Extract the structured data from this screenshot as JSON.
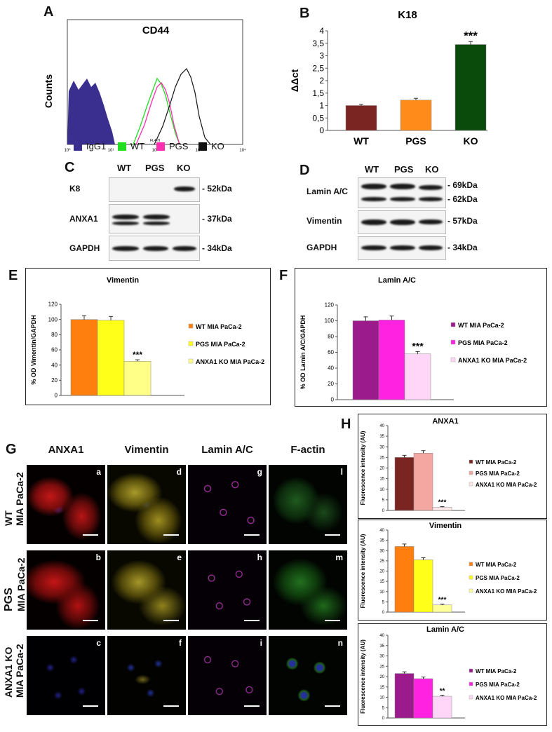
{
  "panels": {
    "A": "A",
    "B": "B",
    "C": "C",
    "D": "D",
    "E": "E",
    "F": "F",
    "G": "G",
    "H": "H"
  },
  "panel_a": {
    "title": "CD44",
    "ylabel": "Counts",
    "xlabel": "FL4-H",
    "x_ticks": [
      "10⁰",
      "10¹",
      "10²",
      "10³",
      "10⁴"
    ],
    "legend": [
      {
        "label": "IgG1",
        "color": "#3a2f8f"
      },
      {
        "label": "WT",
        "color": "#22dd22"
      },
      {
        "label": "PGS",
        "color": "#ff2fb0"
      },
      {
        "label": "KO",
        "color": "#111111"
      }
    ]
  },
  "panel_c": {
    "lanes": [
      "WT",
      "PGS",
      "KO"
    ],
    "rows": [
      {
        "label": "K8",
        "kda": "- 52kDa"
      },
      {
        "label": "ANXA1",
        "kda": "- 37kDa"
      },
      {
        "label": "GAPDH",
        "kda": "- 34kDa"
      }
    ]
  },
  "panel_d": {
    "lanes": [
      "WT",
      "PGS",
      "KO"
    ],
    "rows": [
      {
        "label": "Lamin A/C",
        "kda": "- 69kDa",
        "kda2": "- 62kDa"
      },
      {
        "label": "Vimentin",
        "kda": "- 57kDa"
      },
      {
        "label": "GAPDH",
        "kda": "- 34kDa"
      }
    ]
  },
  "chart_data": [
    {
      "id": "B",
      "type": "bar",
      "title": "K18",
      "ylabel": "ΔΔct",
      "categories": [
        "WT",
        "PGS",
        "KO"
      ],
      "values": [
        1.0,
        1.22,
        3.45
      ],
      "errors": [
        0.05,
        0.07,
        0.12
      ],
      "colors": [
        "#7b2522",
        "#ff8c1a",
        "#0a4a0a"
      ],
      "ylim": [
        0,
        4
      ],
      "yticks": [
        "0",
        "0,5",
        "1",
        "1,5",
        "2",
        "2,5",
        "3",
        "3,5",
        "4"
      ],
      "annotations": [
        "",
        "",
        "***"
      ]
    },
    {
      "id": "E",
      "type": "bar",
      "title": "Vimentin",
      "ylabel": "% OD Vimentin/GAPDH",
      "legend_position": "right",
      "series": [
        {
          "name": "WT MIA PaCa-2",
          "value": 100,
          "error": 5,
          "color": "#ff7f0e"
        },
        {
          "name": "PGS MIA PaCa-2",
          "value": 99,
          "error": 5,
          "color": "#ffff1a"
        },
        {
          "name": "ANXA1 KO MIA PaCa-2",
          "value": 45,
          "error": 2,
          "color": "#ffff88"
        }
      ],
      "ylim": [
        0,
        120
      ],
      "yticks": [
        "0",
        "20",
        "40",
        "60",
        "80",
        "100",
        "120"
      ],
      "annotations": [
        "",
        "",
        "***"
      ]
    },
    {
      "id": "F",
      "type": "bar",
      "title": "Lamin A/C",
      "ylabel": "% OD Lamin A/C/GAPDH",
      "legend_position": "right",
      "series": [
        {
          "name": "WT MIA PaCa-2",
          "value": 100,
          "error": 5,
          "color": "#9b1a8c"
        },
        {
          "name": "PGS MIA PaCa-2",
          "value": 101,
          "error": 5,
          "color": "#ff22e0"
        },
        {
          "name": "ANXA1 KO MIA PaCa-2",
          "value": 58,
          "error": 3,
          "color": "#ffd6f8"
        }
      ],
      "ylim": [
        0,
        120
      ],
      "yticks": [
        "0",
        "20",
        "40",
        "60",
        "80",
        "100",
        "120"
      ],
      "annotations": [
        "",
        "",
        "***"
      ]
    },
    {
      "id": "H1",
      "type": "bar",
      "title": "ANXA1",
      "ylabel": "Fluorescence intensity (AU)",
      "legend_position": "right",
      "series": [
        {
          "name": "WT MIA PaCa-2",
          "value": 25,
          "error": 1,
          "color": "#7b2522"
        },
        {
          "name": "PGS MIA PaCa-2",
          "value": 27,
          "error": 1.2,
          "color": "#f4a6a0"
        },
        {
          "name": "ANXA1 KO MIA PaCa-2",
          "value": 1.5,
          "error": 0.3,
          "color": "#ffe8e8"
        }
      ],
      "ylim": [
        0,
        40
      ],
      "yticks": [
        "0",
        "5",
        "10",
        "15",
        "20",
        "25",
        "30",
        "35",
        "40"
      ],
      "annotations": [
        "",
        "",
        "***"
      ]
    },
    {
      "id": "H2",
      "type": "bar",
      "title": "Vimentin",
      "ylabel": "Fluorescence intensity (AU)",
      "legend_position": "right",
      "series": [
        {
          "name": "WT MIA PaCa-2",
          "value": 32,
          "error": 1.2,
          "color": "#ff7f0e"
        },
        {
          "name": "PGS MIA PaCa-2",
          "value": 25.5,
          "error": 1,
          "color": "#ffff1a"
        },
        {
          "name": "ANXA1 KO MIA PaCa-2",
          "value": 3.5,
          "error": 0.4,
          "color": "#ffff99"
        }
      ],
      "ylim": [
        0,
        40
      ],
      "yticks": [
        "0",
        "5",
        "10",
        "15",
        "20",
        "25",
        "30",
        "35",
        "40"
      ],
      "annotations": [
        "",
        "",
        "***"
      ]
    },
    {
      "id": "H3",
      "type": "bar",
      "title": "Lamin A/C",
      "ylabel": "Fluorescence intensity (AU)",
      "legend_position": "right",
      "series": [
        {
          "name": "WT MIA PaCa-2",
          "value": 21.5,
          "error": 0.8,
          "color": "#9b1a8c"
        },
        {
          "name": "PGS MIA PaCa-2",
          "value": 19,
          "error": 0.8,
          "color": "#ff22e0"
        },
        {
          "name": "ANXA1 KO MIA PaCa-2",
          "value": 10.5,
          "error": 0.5,
          "color": "#ffd6f8"
        }
      ],
      "ylim": [
        0,
        40
      ],
      "yticks": [
        "0",
        "5",
        "10",
        "15",
        "20",
        "25",
        "30",
        "35",
        "40"
      ],
      "annotations": [
        "",
        "",
        "**"
      ]
    }
  ],
  "panel_g": {
    "columns": [
      "ANXA1",
      "Vimentin",
      "Lamin A/C",
      "F-actin"
    ],
    "rows": [
      {
        "line1": "WT",
        "line2": "MIA PaCa-2",
        "letters": [
          "a",
          "d",
          "g",
          "l"
        ]
      },
      {
        "line1": "PGS",
        "line2": "MIA PaCa-2",
        "letters": [
          "b",
          "e",
          "h",
          "m"
        ]
      },
      {
        "line1": "ANXA1 KO",
        "line2": "MIA PaCa-2",
        "letters": [
          "c",
          "f",
          "i",
          "n"
        ]
      }
    ]
  }
}
